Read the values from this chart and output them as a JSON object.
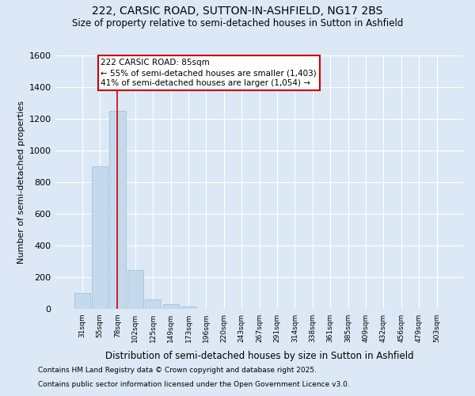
{
  "title1": "222, CARSIC ROAD, SUTTON-IN-ASHFIELD, NG17 2BS",
  "title2": "Size of property relative to semi-detached houses in Sutton in Ashfield",
  "xlabel": "Distribution of semi-detached houses by size in Sutton in Ashfield",
  "ylabel": "Number of semi-detached properties",
  "categories": [
    "31sqm",
    "55sqm",
    "78sqm",
    "102sqm",
    "125sqm",
    "149sqm",
    "173sqm",
    "196sqm",
    "220sqm",
    "243sqm",
    "267sqm",
    "291sqm",
    "314sqm",
    "338sqm",
    "361sqm",
    "385sqm",
    "409sqm",
    "432sqm",
    "456sqm",
    "479sqm",
    "503sqm"
  ],
  "values": [
    100,
    900,
    1248,
    245,
    58,
    30,
    15,
    0,
    0,
    0,
    0,
    0,
    0,
    0,
    0,
    0,
    0,
    0,
    0,
    0,
    0
  ],
  "bar_color": "#c5d9ed",
  "bar_edge_color": "#9bbdd6",
  "red_line_x": 2,
  "annotation_title": "222 CARSIC ROAD: 85sqm",
  "annotation_line1": "← 55% of semi-detached houses are smaller (1,403)",
  "annotation_line2": "41% of semi-detached houses are larger (1,054) →",
  "annotation_box_color": "#ffffff",
  "annotation_box_edge": "#cc0000",
  "red_line_color": "#cc0000",
  "ylim": [
    0,
    1600
  ],
  "yticks": [
    0,
    200,
    400,
    600,
    800,
    1000,
    1200,
    1400,
    1600
  ],
  "footer1": "Contains HM Land Registry data © Crown copyright and database right 2025.",
  "footer2": "Contains public sector information licensed under the Open Government Licence v3.0.",
  "bg_color": "#dce8f5",
  "plot_bg_color": "#dce8f5",
  "grid_color": "#ffffff"
}
